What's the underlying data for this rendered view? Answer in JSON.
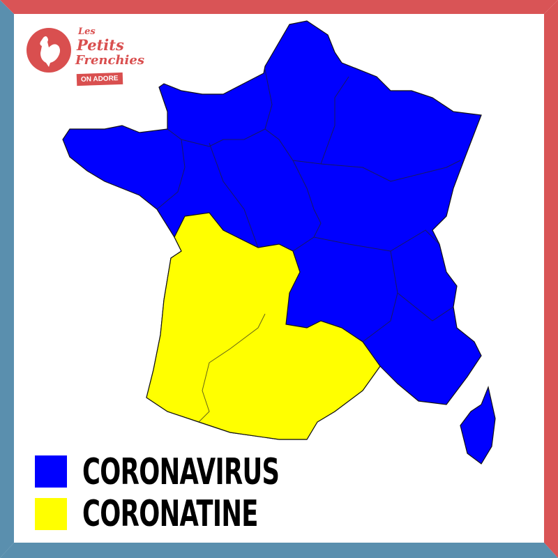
{
  "colors": {
    "frame_red": "#d95456",
    "frame_blue": "#5a8fae",
    "coronavirus": "#0000ff",
    "coronatine": "#ffff00",
    "logo_red": "#d94f4f"
  },
  "logo": {
    "line1": "Les",
    "line2": "Petits",
    "line3": "Frenchies",
    "badge": "ON ADORE",
    "icon": "rooster-icon"
  },
  "map": {
    "country": "France",
    "regions_yellow": [
      "Nouvelle-Aquitaine",
      "Occitanie"
    ]
  },
  "legend": [
    {
      "label": "CORONAVIRUS",
      "color": "#0000ff"
    },
    {
      "label": "CORONATINE",
      "color": "#ffff00"
    }
  ]
}
